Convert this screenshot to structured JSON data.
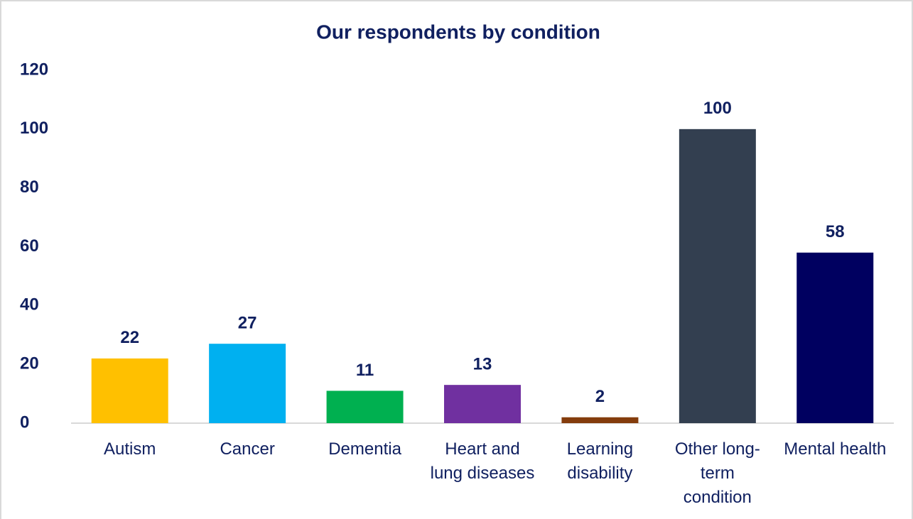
{
  "chart_data": {
    "type": "bar",
    "title": "Our respondents by condition",
    "categories": [
      "Autism",
      "Cancer",
      "Dementia",
      "Heart and lung diseases",
      "Learning disability",
      "Other long-term condition",
      "Mental health"
    ],
    "values": [
      22,
      27,
      11,
      13,
      2,
      100,
      58
    ],
    "colors": [
      "#ffc000",
      "#00b0f0",
      "#00b050",
      "#7030a0",
      "#843c0c",
      "#333f50",
      "#000060"
    ],
    "ylim": [
      0,
      120
    ],
    "yticks": [
      0,
      20,
      40,
      60,
      80,
      100,
      120
    ],
    "grid": false
  }
}
